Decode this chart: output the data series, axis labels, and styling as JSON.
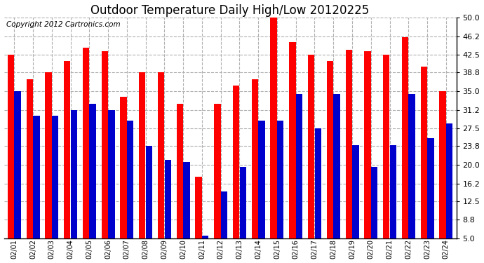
{
  "title": "Outdoor Temperature Daily High/Low 20120225",
  "copyright": "Copyright 2012 Cartronics.com",
  "dates": [
    "02/01",
    "02/02",
    "02/03",
    "02/04",
    "02/05",
    "02/06",
    "02/07",
    "02/08",
    "02/09",
    "02/10",
    "02/11",
    "02/12",
    "02/13",
    "02/14",
    "02/15",
    "02/16",
    "02/17",
    "02/18",
    "02/19",
    "02/20",
    "02/21",
    "02/22",
    "02/23",
    "02/24"
  ],
  "highs": [
    42.5,
    37.5,
    38.8,
    41.2,
    43.8,
    43.2,
    33.8,
    38.8,
    38.8,
    32.5,
    17.5,
    32.5,
    36.2,
    37.5,
    50.0,
    45.0,
    42.5,
    41.2,
    43.5,
    43.2,
    42.5,
    46.0,
    40.0,
    35.0
  ],
  "lows": [
    35.0,
    30.0,
    30.0,
    31.2,
    32.5,
    31.2,
    29.0,
    23.8,
    21.0,
    20.5,
    5.5,
    14.5,
    19.5,
    29.0,
    29.0,
    34.5,
    27.5,
    34.5,
    24.0,
    19.5,
    24.0,
    34.5,
    25.5,
    28.5
  ],
  "high_color": "#ff0000",
  "low_color": "#0000cc",
  "background_color": "#ffffff",
  "plot_bg_color": "#ffffff",
  "grid_color": "#b0b0b0",
  "yticks": [
    5.0,
    8.8,
    12.5,
    16.2,
    20.0,
    23.8,
    27.5,
    31.2,
    35.0,
    38.8,
    42.5,
    46.2,
    50.0
  ],
  "ymin": 5.0,
  "ymax": 50.0,
  "title_fontsize": 12,
  "copyright_fontsize": 7.5,
  "bar_width": 0.35,
  "bar_gap": 0.01
}
